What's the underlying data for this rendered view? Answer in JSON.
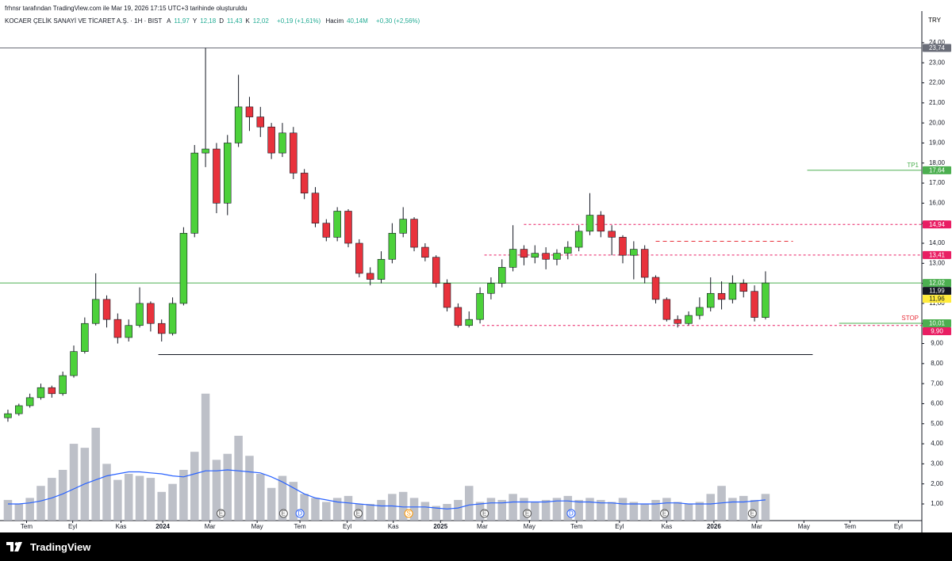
{
  "header": {
    "attribution": "frhnsr tarafından TradingView.com ile Mar 19, 2026 17:15 UTC+3 tarihinde oluşturuldu",
    "symbol": "KOCAER ÇELİK SANAYİ VE TİCARET A.Ş. · 1H · BIST",
    "ohlc": [
      {
        "label": "A",
        "value": "11,97"
      },
      {
        "label": "Y",
        "value": "12,18"
      },
      {
        "label": "D",
        "value": "11,43"
      },
      {
        "label": "K",
        "value": "12,02"
      }
    ],
    "change": "+0,19 (+1,61%)",
    "volume_label": "Hacim",
    "volume_value": "40,14M",
    "volume_change": "+0,30 (+2,56%)"
  },
  "currency": "TRY",
  "footer": "TradingView",
  "chart_data": {
    "type": "candlestick",
    "grid": false,
    "up_color": "#4cd13a",
    "down_color": "#e8323c",
    "volume_color": "#b2b5be",
    "ma_color": "#2962ff",
    "xlim": [
      -0.72,
      83.24
    ],
    "ylim": [
      0.17,
      24.55
    ],
    "xticks": [
      {
        "value": 1.7,
        "label": "Tem"
      },
      {
        "value": 5.9,
        "label": "Eyl"
      },
      {
        "value": 10.3,
        "label": "Kas"
      },
      {
        "value": 14.1,
        "label": "2024"
      },
      {
        "value": 18.4,
        "label": "Mar"
      },
      {
        "value": 22.7,
        "label": "May"
      },
      {
        "value": 26.6,
        "label": "Tem"
      },
      {
        "value": 30.9,
        "label": "Eyl"
      },
      {
        "value": 35.1,
        "label": "Kas"
      },
      {
        "value": 39.4,
        "label": "2025"
      },
      {
        "value": 43.2,
        "label": "Mar"
      },
      {
        "value": 47.5,
        "label": "May"
      },
      {
        "value": 51.8,
        "label": "Tem"
      },
      {
        "value": 55.7,
        "label": "Eyl"
      },
      {
        "value": 60.0,
        "label": "Kas"
      },
      {
        "value": 64.3,
        "label": "2026"
      },
      {
        "value": 68.2,
        "label": "Mar"
      },
      {
        "value": 72.5,
        "label": "May"
      },
      {
        "value": 76.7,
        "label": "Tem"
      },
      {
        "value": 81.1,
        "label": "Eyl"
      }
    ],
    "yticks": [
      {
        "value": 1,
        "label": "1,00"
      },
      {
        "value": 2,
        "label": "2,00"
      },
      {
        "value": 3,
        "label": "3,00"
      },
      {
        "value": 4,
        "label": "4,00"
      },
      {
        "value": 5,
        "label": "5,00"
      },
      {
        "value": 6,
        "label": "6,00"
      },
      {
        "value": 7,
        "label": "7,00"
      },
      {
        "value": 8,
        "label": "8,00"
      },
      {
        "value": 9,
        "label": "9,00"
      },
      {
        "value": 10,
        "label": "10,00"
      },
      {
        "value": 11,
        "label": "11,00"
      },
      {
        "value": 12,
        "label": "12,00"
      },
      {
        "value": 13,
        "label": "13,00"
      },
      {
        "value": 14,
        "label": "14,00"
      },
      {
        "value": 15,
        "label": "15,00"
      },
      {
        "value": 16,
        "label": "16,00"
      },
      {
        "value": 17,
        "label": "17,00"
      },
      {
        "value": 18,
        "label": "18,00"
      },
      {
        "value": 19,
        "label": "19,00"
      },
      {
        "value": 20,
        "label": "20,00"
      },
      {
        "value": 21,
        "label": "21,00"
      },
      {
        "value": 22,
        "label": "22,00"
      },
      {
        "value": 23,
        "label": "23,00"
      },
      {
        "value": 24,
        "label": "24,00"
      }
    ],
    "open": [
      5.3,
      5.5,
      5.9,
      6.3,
      6.8,
      6.5,
      7.4,
      8.6,
      10.0,
      11.2,
      10.2,
      9.3,
      9.9,
      11.0,
      10.0,
      9.5,
      11.0,
      14.5,
      18.5,
      18.7,
      16.0,
      19.0,
      20.8,
      20.3,
      19.8,
      18.5,
      19.5,
      17.5,
      16.5,
      15.0,
      14.3,
      15.6,
      14.0,
      12.5,
      12.2,
      13.2,
      14.5,
      15.2,
      13.8,
      13.3,
      12.0,
      10.8,
      9.9,
      10.2,
      11.5,
      12.0,
      12.8,
      13.7,
      13.3,
      13.5,
      13.2,
      13.5,
      13.8,
      14.6,
      15.4,
      14.6,
      14.3,
      13.4,
      13.7,
      12.3,
      11.2,
      10.2,
      10.0,
      10.4,
      10.8,
      11.5,
      11.2,
      12.0,
      11.6,
      10.3
    ],
    "high": [
      5.7,
      6.0,
      6.5,
      7.0,
      6.9,
      7.6,
      8.9,
      10.3,
      12.5,
      11.4,
      10.5,
      10.2,
      11.8,
      11.1,
      10.2,
      11.3,
      14.8,
      18.9,
      23.74,
      19.0,
      19.4,
      22.4,
      21.3,
      20.8,
      20.0,
      20.0,
      19.8,
      17.7,
      16.8,
      15.2,
      15.8,
      15.7,
      14.2,
      12.8,
      13.6,
      15.0,
      15.8,
      15.3,
      14.0,
      13.4,
      12.2,
      11.0,
      10.6,
      11.8,
      12.3,
      13.2,
      14.9,
      13.9,
      13.9,
      13.8,
      13.7,
      14.1,
      14.9,
      16.5,
      15.6,
      14.9,
      14.4,
      14.1,
      13.9,
      12.4,
      11.3,
      10.4,
      10.6,
      11.3,
      12.3,
      12.1,
      12.4,
      12.2,
      11.9,
      12.6
    ],
    "low": [
      5.1,
      5.4,
      5.8,
      6.2,
      6.3,
      6.4,
      7.3,
      8.5,
      9.9,
      9.8,
      9.0,
      9.1,
      9.8,
      9.6,
      9.1,
      9.4,
      10.9,
      14.3,
      17.8,
      15.5,
      15.4,
      18.8,
      19.6,
      19.3,
      18.2,
      18.3,
      17.2,
      16.2,
      14.8,
      14.1,
      14.1,
      13.8,
      12.3,
      11.9,
      12.0,
      13.0,
      14.3,
      13.6,
      13.1,
      11.8,
      10.6,
      9.8,
      9.8,
      10.0,
      11.2,
      11.8,
      12.6,
      12.9,
      13.0,
      12.7,
      12.9,
      13.2,
      13.6,
      14.4,
      14.3,
      13.4,
      13.0,
      12.2,
      12.0,
      11.0,
      10.1,
      9.8,
      9.9,
      10.2,
      10.6,
      10.7,
      11.0,
      11.3,
      10.1,
      10.2
    ],
    "close": [
      5.5,
      5.9,
      6.3,
      6.8,
      6.5,
      7.4,
      8.6,
      10.0,
      11.2,
      10.2,
      9.3,
      9.9,
      11.0,
      10.0,
      9.5,
      11.0,
      14.5,
      18.5,
      18.7,
      16.0,
      19.0,
      20.8,
      20.3,
      19.8,
      18.5,
      19.5,
      17.5,
      16.5,
      15.0,
      14.3,
      15.6,
      14.0,
      12.5,
      12.2,
      13.2,
      14.5,
      15.2,
      13.8,
      13.3,
      12.0,
      10.8,
      9.9,
      10.2,
      11.5,
      12.0,
      12.8,
      13.7,
      13.3,
      13.5,
      13.2,
      13.5,
      13.8,
      14.6,
      15.4,
      14.6,
      14.3,
      13.4,
      13.7,
      12.3,
      11.2,
      10.2,
      10.0,
      10.4,
      10.8,
      11.5,
      11.2,
      12.0,
      11.6,
      10.3,
      12.02
    ],
    "volume": [
      1.2,
      1.0,
      1.3,
      1.9,
      2.3,
      2.7,
      4.0,
      3.8,
      4.8,
      3.0,
      2.2,
      2.5,
      2.4,
      2.3,
      1.6,
      2.0,
      2.7,
      3.6,
      6.5,
      3.2,
      3.5,
      4.4,
      3.4,
      2.5,
      1.8,
      2.4,
      2.1,
      1.5,
      1.3,
      1.1,
      1.3,
      1.4,
      1.0,
      1.0,
      1.2,
      1.5,
      1.6,
      1.3,
      1.1,
      0.9,
      1.0,
      1.2,
      1.9,
      1.1,
      1.3,
      1.2,
      1.5,
      1.3,
      1.1,
      1.2,
      1.3,
      1.4,
      1.2,
      1.3,
      1.2,
      1.1,
      1.3,
      1.1,
      1.0,
      1.2,
      1.3,
      1.1,
      1.0,
      1.1,
      1.5,
      1.9,
      1.3,
      1.4,
      1.2,
      1.5
    ],
    "volume_ma": [
      1.0,
      1.0,
      1.05,
      1.15,
      1.3,
      1.5,
      1.75,
      2.0,
      2.2,
      2.4,
      2.5,
      2.6,
      2.6,
      2.55,
      2.5,
      2.4,
      2.35,
      2.5,
      2.65,
      2.65,
      2.7,
      2.65,
      2.6,
      2.55,
      2.35,
      2.1,
      1.8,
      1.5,
      1.3,
      1.2,
      1.1,
      1.05,
      1.0,
      0.95,
      0.9,
      0.9,
      0.85,
      0.85,
      0.85,
      0.8,
      0.75,
      0.8,
      0.95,
      1.0,
      1.05,
      1.05,
      1.1,
      1.1,
      1.1,
      1.1,
      1.15,
      1.15,
      1.1,
      1.1,
      1.05,
      1.05,
      1.0,
      1.0,
      1.0,
      1.0,
      1.05,
      1.05,
      1.0,
      1.0,
      1.0,
      1.05,
      1.1,
      1.1,
      1.15,
      1.2
    ],
    "price_lines": [
      {
        "value": 23.74,
        "label": "23,74",
        "color": "#6a6d78",
        "style": "solid",
        "start": -0.72
      },
      {
        "value": 17.64,
        "label": "17,64",
        "color": "#4caf50",
        "style": "solid",
        "start": 72.8,
        "text": "TP1"
      },
      {
        "value": 14.94,
        "label": "14,94",
        "color": "#e91e63",
        "style": "dashed",
        "start": 47.0
      },
      {
        "value": 13.41,
        "label": "13,41",
        "color": "#e91e63",
        "style": "dashed",
        "start": 43.4
      },
      {
        "value": 12.02,
        "label": "12,02",
        "color": "#4caf50",
        "style": "solid",
        "start": -0.72
      },
      {
        "value": 10.01,
        "label": "10,01",
        "color": "#4caf50",
        "style": "solid",
        "start": 75.7,
        "text": "STOP"
      },
      {
        "value": 9.9,
        "label": "9,90",
        "color": "#e91e63",
        "style": "dashed",
        "start": 43.2
      }
    ],
    "segments": [
      {
        "value": 8.45,
        "start": 13.7,
        "end": 73.3,
        "color": "#131722",
        "style": "solid"
      },
      {
        "value": 14.1,
        "start": 59.0,
        "end": 71.5,
        "color": "#e8323c",
        "style": "dashed"
      }
    ],
    "price_tags": [
      {
        "value": 11.99,
        "label": "11,99",
        "color": "#131722",
        "text_color": "#ffffff"
      },
      {
        "value": 11.96,
        "label": "11,96",
        "color": "#ffeb3b",
        "text_color": "#131722"
      }
    ],
    "events": [
      {
        "label": "E",
        "x": 19.4
      },
      {
        "label": "E",
        "x": 25.1
      },
      {
        "label": "D",
        "x": 26.6
      },
      {
        "label": "E",
        "x": 31.9
      },
      {
        "label": "S",
        "x": 36.5
      },
      {
        "label": "E",
        "x": 43.4
      },
      {
        "label": "E",
        "x": 47.3
      },
      {
        "label": "D",
        "x": 51.3
      },
      {
        "label": "E",
        "x": 59.8
      },
      {
        "label": "E",
        "x": 67.8
      }
    ]
  }
}
